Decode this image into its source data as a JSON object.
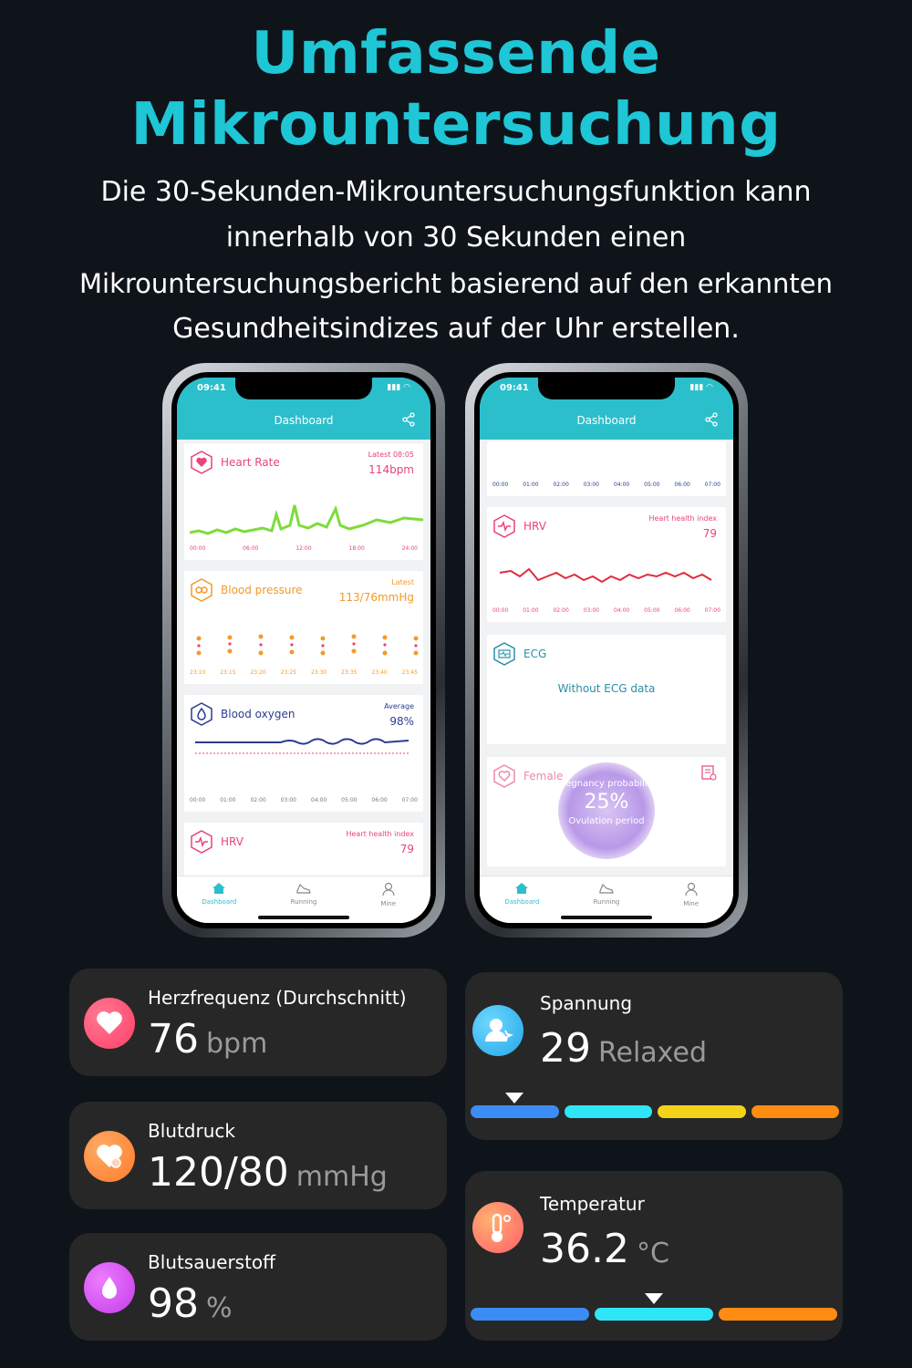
{
  "hero": {
    "title_line1": "Umfassende",
    "title_line2": "Mikrountersuchung",
    "desc_line1": "Die 30-Sekunden-Mikrountersuchungsfunktion kann",
    "desc_line2": "innerhalb von 30 Sekunden einen",
    "desc_line3": "Mikrountersuchungsbericht basierend auf den erkannten",
    "desc_line4": "Gesundheitsindizes auf der Uhr erstellen."
  },
  "colors": {
    "accent": "#1ec6d6",
    "app_teal": "#2bbfcc",
    "card_bg": "#272727"
  },
  "phone_left": {
    "time": "09:41",
    "header": "Dashboard",
    "heart_rate": {
      "label": "Heart Rate",
      "small": "Latest 08:05",
      "value": "114bpm",
      "axis": [
        "00:00",
        "06:00",
        "12:00",
        "18:00",
        "24:00"
      ]
    },
    "blood_pressure": {
      "label": "Blood pressure",
      "small": "Latest",
      "value": "113/76mmHg",
      "axis": [
        "23:10",
        "23:15",
        "23:20",
        "23:25",
        "23:30",
        "23:35",
        "23:40",
        "23:45"
      ]
    },
    "blood_oxygen": {
      "label": "Blood oxygen",
      "small": "Average",
      "value": "98%",
      "axis": [
        "00:00",
        "01:00",
        "02:00",
        "03:00",
        "04:00",
        "05:00",
        "06:00",
        "07:00"
      ]
    },
    "hrv": {
      "label": "HRV",
      "small": "Heart health index",
      "value": "79"
    },
    "tabs": [
      "Dashboard",
      "Running",
      "Mine"
    ]
  },
  "phone_right": {
    "time": "09:41",
    "header": "Dashboard",
    "top_axis": [
      "00:00",
      "01:00",
      "02:00",
      "03:00",
      "04:00",
      "05:00",
      "06:00",
      "07:00"
    ],
    "hrv": {
      "label": "HRV",
      "small": "Heart health index",
      "value": "79",
      "axis": [
        "00:00",
        "01:00",
        "02:00",
        "03:00",
        "04:00",
        "05:00",
        "06:00",
        "07:00"
      ]
    },
    "ecg": {
      "label": "ECG",
      "message": "Without ECG data"
    },
    "female": {
      "label": "Female",
      "line1": "Pregnancy probability",
      "percent": "25%",
      "line2": "Ovulation period"
    },
    "tabs": [
      "Dashboard",
      "Running",
      "Mine"
    ]
  },
  "metrics": {
    "heart": {
      "label": "Herzfrequenz (Durchschnitt)",
      "value": "76",
      "unit": "bpm",
      "icon": "heart-icon",
      "color": "#ff4a73"
    },
    "pressure": {
      "label": "Blutdruck",
      "value": "120/80",
      "unit": "mmHg",
      "icon": "heart-gauge-icon",
      "color": "#ff8a3d"
    },
    "oxygen": {
      "label": "Blutsauerstoff",
      "value": "98",
      "unit": "%",
      "icon": "drop-icon",
      "color": "#d64cf0"
    },
    "stress": {
      "label": "Spannung",
      "value": "29",
      "unit": "Relaxed",
      "icon": "person-icon",
      "color": "#2fb6f0",
      "level": 0.12,
      "bar_colors": [
        "#3b8cf5",
        "#2ee6f5",
        "#f5d21a",
        "#ff8c12"
      ]
    },
    "temp": {
      "label": "Temperatur",
      "value": "36.2",
      "unit": "°C",
      "icon": "thermometer-icon",
      "color": "#ff7a55",
      "level": 0.5,
      "bar_colors": [
        "#3b8cf5",
        "#2ee6f5",
        "#ff8c12"
      ]
    }
  }
}
